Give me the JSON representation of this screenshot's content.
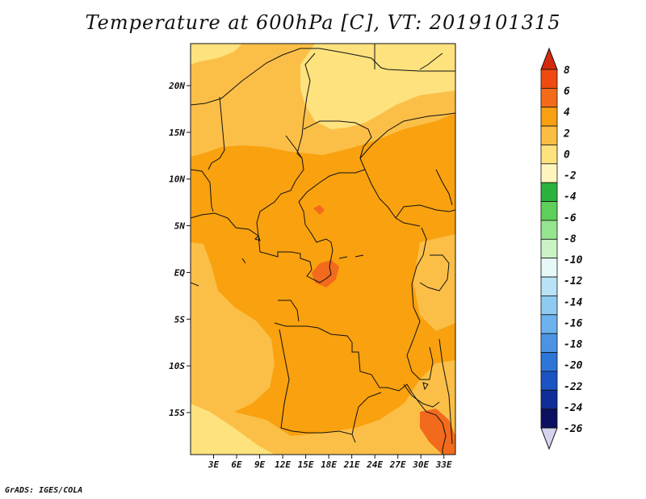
{
  "title": "Temperature at 600hPa [C], VT: 2019101315",
  "credit": "GrADS: IGES/COLA",
  "map": {
    "region": "Central Africa",
    "lat_range": [
      -19.5,
      24.5
    ],
    "lon_range": [
      0,
      34.5
    ],
    "lat_ticks": [
      {
        "value": 20,
        "label": "20N"
      },
      {
        "value": 15,
        "label": "15N"
      },
      {
        "value": 10,
        "label": "10N"
      },
      {
        "value": 5,
        "label": "5N"
      },
      {
        "value": 0,
        "label": "EQ"
      },
      {
        "value": -5,
        "label": "5S"
      },
      {
        "value": -10,
        "label": "10S"
      },
      {
        "value": -15,
        "label": "15S"
      }
    ],
    "lon_ticks": [
      {
        "value": 3,
        "label": "3E"
      },
      {
        "value": 6,
        "label": "6E"
      },
      {
        "value": 9,
        "label": "9E"
      },
      {
        "value": 12,
        "label": "12E"
      },
      {
        "value": 15,
        "label": "15E"
      },
      {
        "value": 18,
        "label": "18E"
      },
      {
        "value": 21,
        "label": "21E"
      },
      {
        "value": 24,
        "label": "24E"
      },
      {
        "value": 27,
        "label": "27E"
      },
      {
        "value": 30,
        "label": "30E"
      },
      {
        "value": 33,
        "label": "33E"
      }
    ],
    "field": "temperature",
    "dominant_range_c": "2 to 4",
    "colors": {
      "band_0_2": "#fbbf48",
      "band_2_4": "#f9a10e",
      "band_m2_0": "#fde27e",
      "band_4_6": "#f26a1c"
    }
  },
  "colorbar": {
    "levels": [
      "8",
      "6",
      "4",
      "2",
      "0",
      "-2",
      "-4",
      "-6",
      "-8",
      "-10",
      "-12",
      "-14",
      "-16",
      "-18",
      "-20",
      "-22",
      "-24",
      "-26"
    ],
    "colors": [
      "#d42a0e",
      "#f04a10",
      "#f36b1a",
      "#f8a012",
      "#fbbe44",
      "#fde27e",
      "#fef5bd",
      "#2ab33c",
      "#5fcf5b",
      "#95e48e",
      "#c9f2c5",
      "#e6f8f8",
      "#b8e2f5",
      "#8fcbf1",
      "#6cb2ec",
      "#4b94e3",
      "#2d75d7",
      "#1a53c2",
      "#0e2f98",
      "#0a1160",
      "#d4d4ee"
    ]
  }
}
